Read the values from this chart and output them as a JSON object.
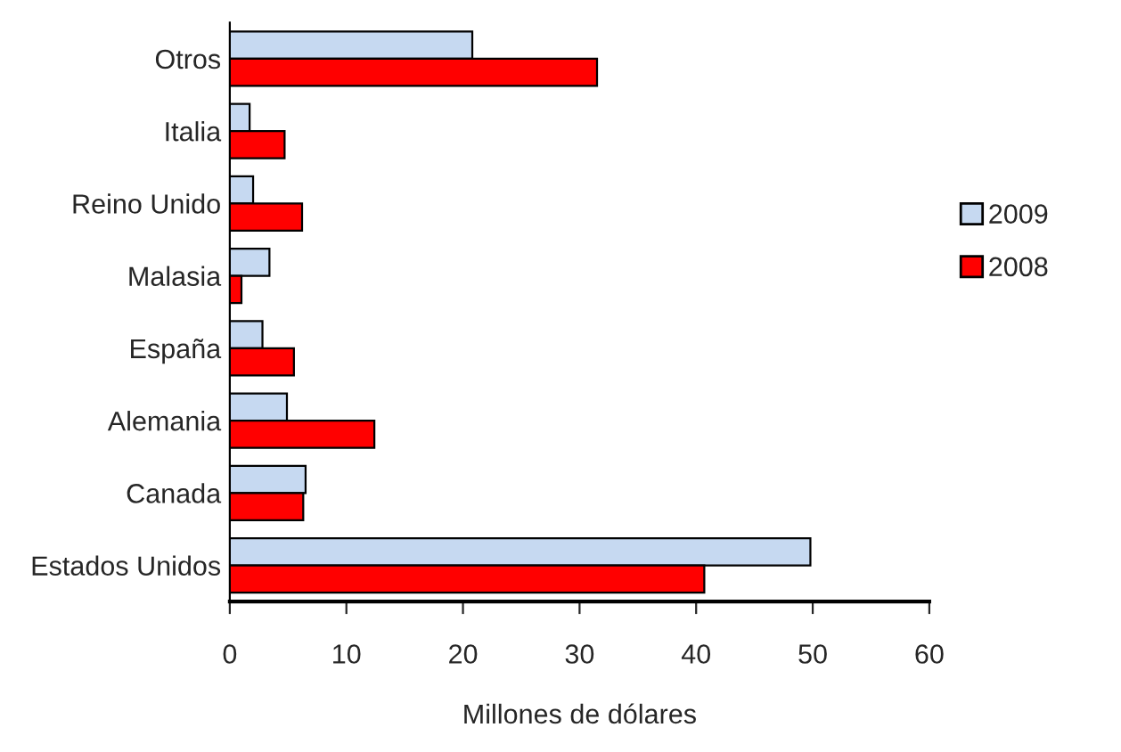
{
  "chart_data": {
    "type": "bar",
    "orientation": "horizontal",
    "xlabel": "Millones de dólares",
    "categories": [
      "Otros",
      "Italia",
      "Reino Unido",
      "Malasia",
      "España",
      "Alemania",
      "Canada",
      "Estados Unidos"
    ],
    "series": [
      {
        "name": "2009",
        "color": "#c6d9f1",
        "values": [
          20.8,
          1.7,
          2.0,
          3.4,
          2.8,
          4.9,
          6.5,
          49.8
        ]
      },
      {
        "name": "2008",
        "color": "#ff0000",
        "values": [
          31.5,
          4.7,
          6.2,
          1.0,
          5.5,
          12.4,
          6.3,
          40.7
        ]
      }
    ],
    "xlim": [
      0,
      60
    ],
    "xticks": [
      0,
      10,
      20,
      30,
      40,
      50,
      60
    ],
    "grid": false,
    "legend": "right"
  }
}
